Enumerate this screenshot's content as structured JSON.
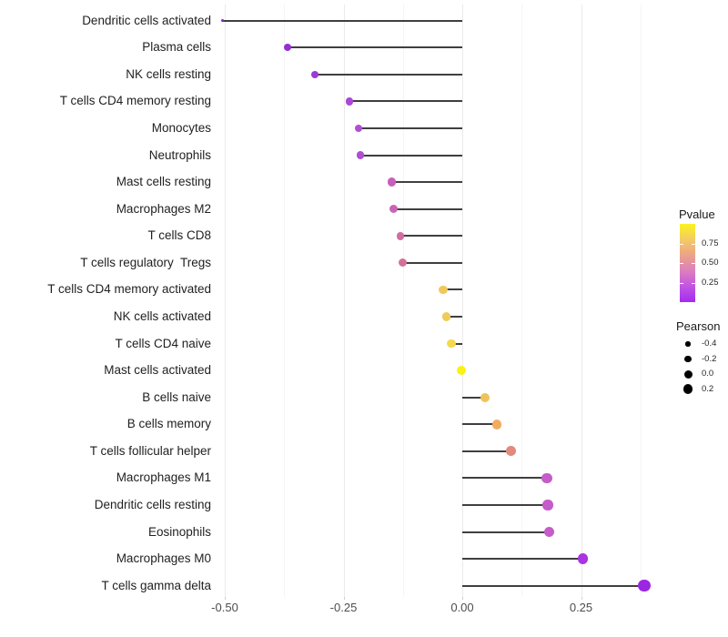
{
  "chart_data": {
    "type": "scatter",
    "variant": "lollipop-horizontal",
    "title": "",
    "xlabel": "",
    "ylabel": "",
    "xlim": [
      -0.517,
      0.397
    ],
    "x_major_ticks": [
      -0.5,
      -0.25,
      0.0,
      0.25
    ],
    "x_major_tick_labels": [
      "-0.50",
      "-0.25",
      "0.00",
      "0.25"
    ],
    "x_minor_ticks": [
      -0.375,
      -0.125,
      0.125,
      0.375
    ],
    "grid": true,
    "stem_color": "#3f3f3f",
    "points": [
      {
        "label": "Dendritic cells activated",
        "pearson": -0.505,
        "color": "#8a22c8",
        "diameter": 3.5
      },
      {
        "label": "Plasma cells",
        "pearson": -0.368,
        "color": "#9130d4",
        "diameter": 8.0
      },
      {
        "label": "NK cells resting",
        "pearson": -0.31,
        "color": "#9c3ad6",
        "diameter": 8.5
      },
      {
        "label": "T cells CD4 memory resting",
        "pearson": -0.238,
        "color": "#ab48d7",
        "diameter": 8.5
      },
      {
        "label": "Monocytes",
        "pearson": -0.218,
        "color": "#b04fd4",
        "diameter": 8.0
      },
      {
        "label": "Neutrophils",
        "pearson": -0.215,
        "color": "#b04fd4",
        "diameter": 8.5
      },
      {
        "label": "Mast cells resting",
        "pearson": -0.148,
        "color": "#c75fbb",
        "diameter": 9.5
      },
      {
        "label": "Macrophages M2",
        "pearson": -0.145,
        "color": "#ca64b4",
        "diameter": 9.0
      },
      {
        "label": "T cells CD8",
        "pearson": -0.13,
        "color": "#d06da2",
        "diameter": 8.7
      },
      {
        "label": "T cells regulatory  Tregs",
        "pearson": -0.126,
        "color": "#d2729b",
        "diameter": 9.0
      },
      {
        "label": "T cells CD4 memory activated",
        "pearson": -0.04,
        "color": "#efc95b",
        "diameter": 9.7
      },
      {
        "label": "NK cells activated",
        "pearson": -0.034,
        "color": "#f0cb57",
        "diameter": 9.5
      },
      {
        "label": "T cells CD4 naive",
        "pearson": -0.023,
        "color": "#f4da4b",
        "diameter": 9.5
      },
      {
        "label": "Mast cells activated",
        "pearson": -0.001,
        "color": "#faf216",
        "diameter": 10.0
      },
      {
        "label": "B cells naive",
        "pearson": 0.048,
        "color": "#f0c35a",
        "diameter": 10.3
      },
      {
        "label": "B cells memory",
        "pearson": 0.073,
        "color": "#f0ac60",
        "diameter": 10.7
      },
      {
        "label": "T cells follicular helper",
        "pearson": 0.103,
        "color": "#e28a7d",
        "diameter": 10.7
      },
      {
        "label": "Macrophages M1",
        "pearson": 0.178,
        "color": "#c55cc8",
        "diameter": 11.3
      },
      {
        "label": "Dendritic cells resting",
        "pearson": 0.18,
        "color": "#c55ac9",
        "diameter": 11.3
      },
      {
        "label": "Eosinophils",
        "pearson": 0.183,
        "color": "#c55cc7",
        "diameter": 11.0
      },
      {
        "label": "Macrophages M0",
        "pearson": 0.254,
        "color": "#a935e0",
        "diameter": 11.7
      },
      {
        "label": "T cells gamma delta",
        "pearson": 0.383,
        "color": "#9b27e2",
        "diameter": 13.5
      }
    ],
    "legend_colorbar": {
      "title": "Pvalue",
      "tick_labels": [
        "0.75",
        "0.50",
        "0.25"
      ],
      "tick_values": [
        0.75,
        0.5,
        0.25
      ],
      "range": [
        0.0,
        1.0
      ],
      "gradient_stops_top_to_bottom": [
        "#faf31e",
        "#f4cb63",
        "#eba389",
        "#dc7fbe",
        "#c155e2",
        "#a42bf0"
      ]
    },
    "legend_size": {
      "title": "Pearson",
      "entries": [
        {
          "label": "-0.4",
          "value": -0.4,
          "diameter": 5.3
        },
        {
          "label": "-0.2",
          "value": -0.2,
          "diameter": 7.3
        },
        {
          "label": "0.0",
          "value": 0.0,
          "diameter": 9.0
        },
        {
          "label": "0.2",
          "value": 0.2,
          "diameter": 10.3
        }
      ],
      "dot_color": "#000000"
    }
  }
}
